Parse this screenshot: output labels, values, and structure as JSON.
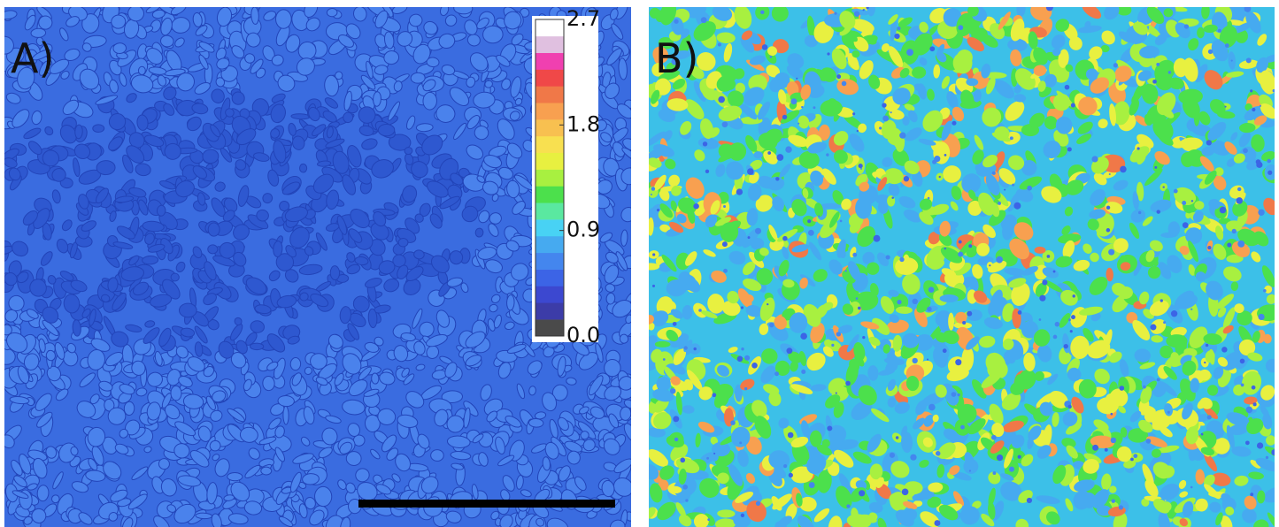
{
  "panels": [
    {
      "label": "A)"
    },
    {
      "label": "B)"
    }
  ],
  "colorbar": {
    "lim": [
      0,
      2.7
    ],
    "ticks": [
      {
        "value": 0,
        "label": "0.0"
      },
      0.9,
      1.8,
      2.7
    ],
    "colors": [
      "#4a4a4a",
      "#3c3ca8",
      "#3c48d0",
      "#3c64e6",
      "#4486ee",
      "#46aaf0",
      "#48d2f4",
      "#5ae8a0",
      "#4ce04c",
      "#a8f040",
      "#e8f040",
      "#f8e050",
      "#f8c050",
      "#f8a050",
      "#f07848",
      "#f04848",
      "#f040b0",
      "#e0c0e0",
      "#ffffff"
    ]
  }
}
